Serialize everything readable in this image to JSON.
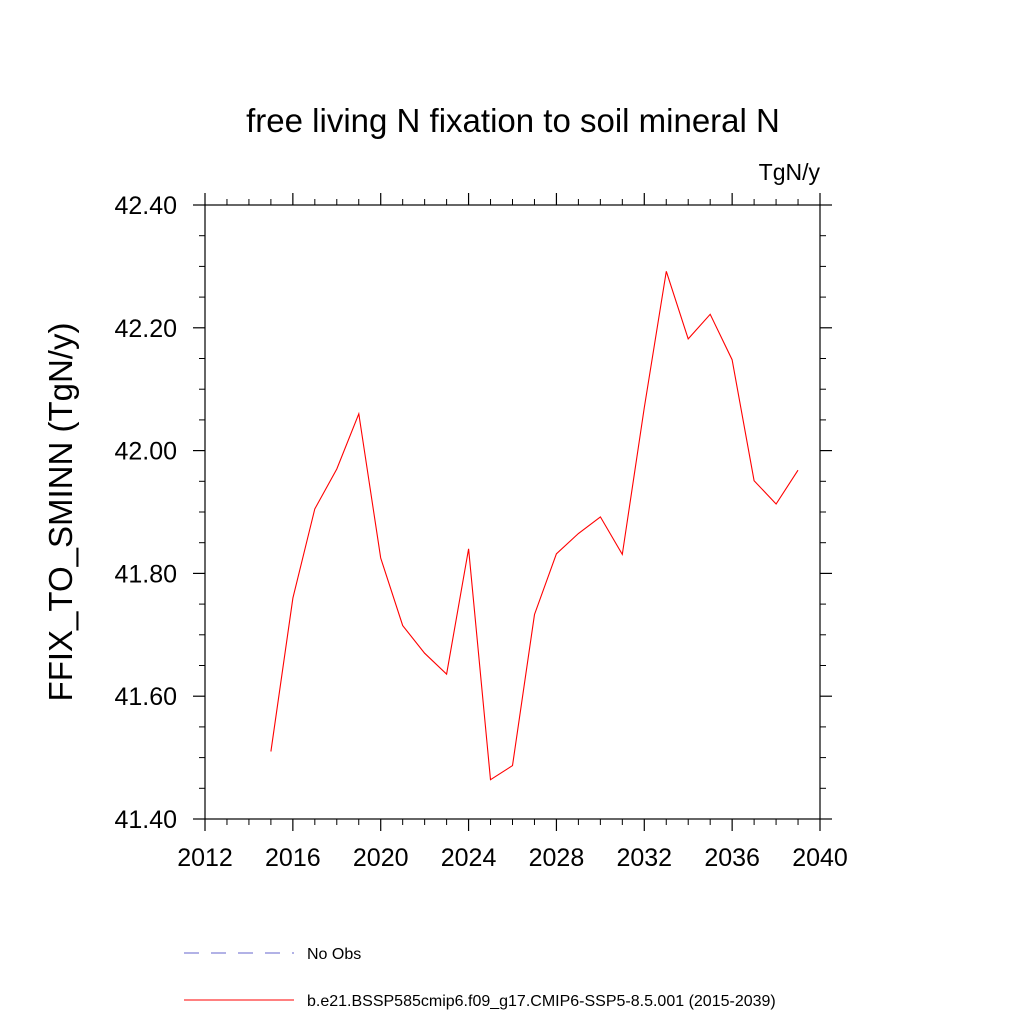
{
  "chart_data": {
    "type": "line",
    "title": "free living N fixation to soil mineral N",
    "units": "TgN/y",
    "ylabel": "FFIX_TO_SMINN  (TgN/y)",
    "xlabel": "",
    "xlim": [
      2012,
      2040
    ],
    "ylim": [
      41.4,
      42.4
    ],
    "x_ticks": [
      2012,
      2016,
      2020,
      2024,
      2028,
      2032,
      2036,
      2040
    ],
    "x_tick_labels": [
      "2012",
      "2016",
      "2020",
      "2024",
      "2028",
      "2032",
      "2036",
      "2040"
    ],
    "y_ticks": [
      41.4,
      41.6,
      41.8,
      42.0,
      42.2,
      42.4
    ],
    "y_tick_labels": [
      "41.40",
      "41.60",
      "41.80",
      "42.00",
      "42.20",
      "42.40"
    ],
    "series": [
      {
        "name": "b.e21.BSSP585cmip6.f09_g17.CMIP6-SSP5-8.5.001 (2015-2039)",
        "color": "#ff0000",
        "x": [
          2015,
          2016,
          2017,
          2018,
          2019,
          2020,
          2021,
          2022,
          2023,
          2024,
          2025,
          2026,
          2027,
          2028,
          2029,
          2030,
          2031,
          2032,
          2033,
          2034,
          2035,
          2036,
          2037,
          2038,
          2039
        ],
        "values": [
          41.51,
          41.76,
          41.905,
          41.97,
          42.06,
          41.825,
          41.715,
          41.67,
          41.636,
          41.84,
          41.464,
          41.487,
          41.733,
          41.832,
          41.865,
          41.892,
          41.831,
          42.07,
          42.292,
          42.182,
          42.222,
          42.148,
          41.951,
          41.913,
          41.968
        ]
      }
    ],
    "legend": [
      {
        "label": "No Obs",
        "color": "#6666cc",
        "style": "dashed"
      },
      {
        "label": "b.e21.BSSP585cmip6.f09_g17.CMIP6-SSP5-8.5.001 (2015-2039)",
        "color": "#ff0000",
        "style": "solid"
      }
    ],
    "legend_position": "bottom",
    "grid": false
  }
}
